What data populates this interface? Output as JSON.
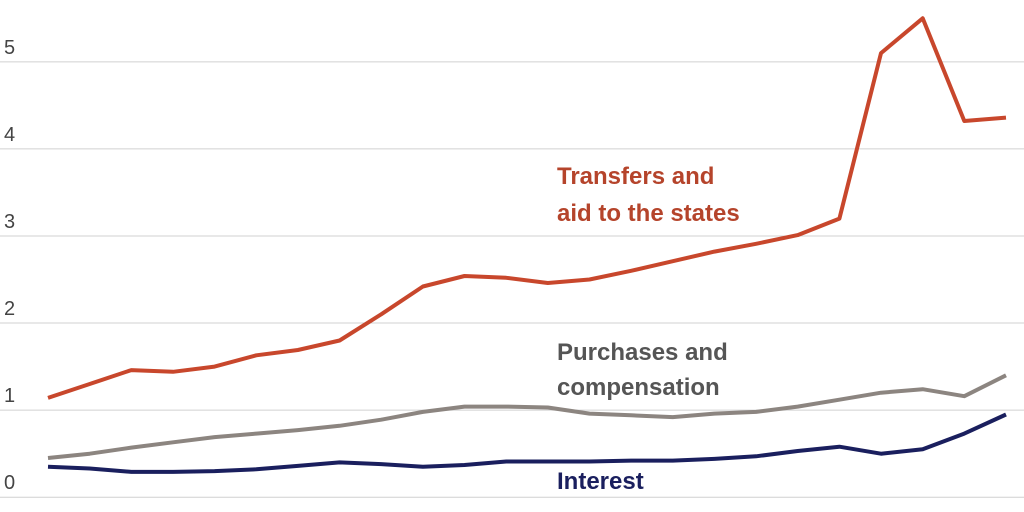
{
  "chart_data": {
    "type": "line",
    "categories": [
      null,
      null,
      null,
      null,
      null,
      null,
      null,
      null,
      null,
      null,
      null,
      null,
      null,
      null,
      null,
      null,
      null,
      null,
      null,
      null,
      null,
      null,
      null,
      null
    ],
    "ylim": [
      -0.17,
      5.71
    ],
    "yticks": [
      0,
      1,
      2,
      3,
      4,
      5
    ],
    "grid": true,
    "series": [
      {
        "label": [
          "Transfers and",
          "aid to the states"
        ],
        "color": "#c8472c",
        "label_color": "#b5442b",
        "values": [
          1.14,
          1.3,
          1.46,
          1.44,
          1.5,
          1.63,
          1.69,
          1.8,
          2.1,
          2.42,
          2.54,
          2.52,
          2.46,
          2.5,
          2.6,
          2.71,
          2.82,
          2.91,
          3.01,
          3.2,
          5.1,
          5.5,
          4.32,
          4.36
        ]
      },
      {
        "label": [
          "Purchases and",
          "compensation"
        ],
        "color": "#8c8580",
        "label_color": "#555555",
        "values": [
          0.45,
          0.5,
          0.57,
          0.63,
          0.69,
          0.73,
          0.77,
          0.82,
          0.89,
          0.98,
          1.04,
          1.04,
          1.03,
          0.96,
          0.94,
          0.92,
          0.96,
          0.98,
          1.04,
          1.12,
          1.2,
          1.24,
          1.16,
          1.4
        ]
      },
      {
        "label": [
          "Interest"
        ],
        "color": "#1a1f5e",
        "label_color": "#1a1f5e",
        "values": [
          0.35,
          0.33,
          0.29,
          0.29,
          0.3,
          0.32,
          0.36,
          0.4,
          0.38,
          0.35,
          0.37,
          0.41,
          0.41,
          0.41,
          0.42,
          0.42,
          0.44,
          0.47,
          0.53,
          0.58,
          0.5,
          0.55,
          0.73,
          0.95
        ]
      }
    ]
  }
}
